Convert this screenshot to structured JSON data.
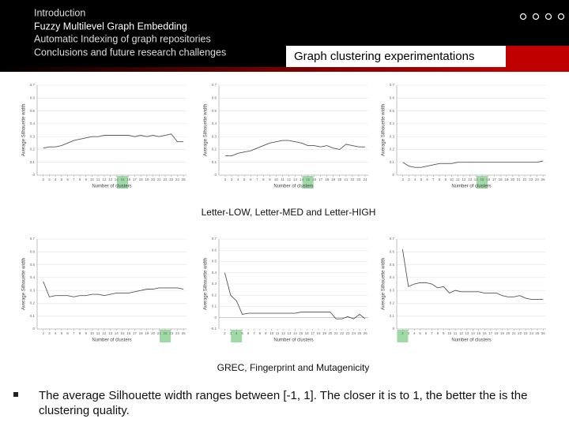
{
  "header": {
    "nav": [
      "Introduction",
      "Fuzzy Multilevel Graph Embedding",
      "Automatic Indexing of graph repositories",
      "Conclusions and future research challenges"
    ],
    "section_title": "Graph clustering experimentations"
  },
  "charts": [
    {
      "type": "line",
      "y_label": "Average Silhouette width",
      "x_label": "Number of clusters",
      "color": "#555555",
      "highlight_color": "#9ed9a6",
      "x": [
        2,
        3,
        4,
        5,
        6,
        7,
        8,
        9,
        10,
        11,
        12,
        13,
        14,
        15,
        16,
        17,
        18,
        19,
        20,
        21,
        22,
        23,
        24,
        25
      ],
      "values": [
        0.21,
        0.22,
        0.22,
        0.23,
        0.25,
        0.27,
        0.28,
        0.29,
        0.3,
        0.3,
        0.31,
        0.31,
        0.31,
        0.31,
        0.31,
        0.3,
        0.31,
        0.3,
        0.31,
        0.3,
        0.31,
        0.32,
        0.26,
        0.26
      ],
      "xlim": [
        1,
        25.5
      ],
      "xticks": [
        2,
        3,
        4,
        5,
        6,
        7,
        8,
        9,
        10,
        11,
        12,
        13,
        14,
        15,
        16,
        17,
        18,
        19,
        20,
        21,
        22,
        23,
        24,
        25
      ],
      "ylim": [
        0,
        0.7
      ],
      "yticks": [
        0,
        0.1,
        0.2,
        0.3,
        0.4,
        0.5,
        0.6,
        0.7
      ],
      "highlight_x": 15
    },
    {
      "type": "line",
      "y_label": "Average Silhouette width",
      "x_label": "Number of clusters",
      "color": "#555555",
      "highlight_color": "#9ed9a6",
      "x": [
        2,
        3,
        4,
        5,
        6,
        7,
        8,
        9,
        10,
        11,
        12,
        13,
        14,
        15,
        16,
        17,
        18,
        19,
        20,
        21,
        22,
        23,
        24
      ],
      "values": [
        0.15,
        0.15,
        0.17,
        0.18,
        0.19,
        0.21,
        0.23,
        0.25,
        0.26,
        0.27,
        0.27,
        0.26,
        0.25,
        0.23,
        0.23,
        0.22,
        0.23,
        0.21,
        0.2,
        0.24,
        0.23,
        0.22,
        0.22
      ],
      "xlim": [
        1,
        24.5
      ],
      "xticks": [
        2,
        3,
        4,
        5,
        6,
        7,
        8,
        9,
        10,
        11,
        12,
        13,
        14,
        15,
        16,
        17,
        18,
        19,
        20,
        21,
        22,
        23,
        24
      ],
      "ylim": [
        0,
        0.7
      ],
      "yticks": [
        0,
        0.1,
        0.2,
        0.3,
        0.4,
        0.5,
        0.6,
        0.7
      ],
      "highlight_x": 15
    },
    {
      "type": "line",
      "y_label": "Average Silhouette width",
      "x_label": "Number of clusters",
      "color": "#555555",
      "highlight_color": "#9ed9a6",
      "x": [
        2,
        3,
        4,
        5,
        6,
        7,
        8,
        9,
        10,
        11,
        12,
        13,
        14,
        15,
        16,
        17,
        18,
        19,
        20,
        21,
        22,
        23,
        24,
        25
      ],
      "values": [
        0.1,
        0.07,
        0.06,
        0.06,
        0.07,
        0.08,
        0.09,
        0.09,
        0.09,
        0.1,
        0.1,
        0.1,
        0.1,
        0.1,
        0.1,
        0.1,
        0.1,
        0.1,
        0.1,
        0.1,
        0.1,
        0.1,
        0.1,
        0.11
      ],
      "xlim": [
        1,
        25.5
      ],
      "xticks": [
        2,
        3,
        4,
        5,
        6,
        7,
        8,
        9,
        10,
        11,
        12,
        13,
        14,
        15,
        16,
        17,
        18,
        19,
        20,
        21,
        22,
        23,
        24,
        25
      ],
      "ylim": [
        0,
        0.7
      ],
      "yticks": [
        0,
        0.1,
        0.2,
        0.3,
        0.4,
        0.5,
        0.6,
        0.7
      ],
      "highlight_x": 15
    },
    {
      "type": "line",
      "y_label": "Average Silhouette width",
      "x_label": "Number of clusters",
      "color": "#555555",
      "highlight_color": "#9ed9a6",
      "x": [
        2,
        3,
        4,
        5,
        6,
        7,
        8,
        9,
        10,
        11,
        12,
        13,
        14,
        15,
        16,
        17,
        18,
        19,
        20,
        21,
        22,
        23,
        24,
        25
      ],
      "values": [
        0.37,
        0.25,
        0.26,
        0.26,
        0.26,
        0.25,
        0.26,
        0.26,
        0.27,
        0.27,
        0.26,
        0.27,
        0.28,
        0.28,
        0.28,
        0.29,
        0.3,
        0.31,
        0.31,
        0.32,
        0.32,
        0.32,
        0.32,
        0.31
      ],
      "xlim": [
        1,
        25.5
      ],
      "xticks": [
        2,
        3,
        4,
        5,
        6,
        7,
        8,
        9,
        10,
        11,
        12,
        13,
        14,
        15,
        16,
        17,
        18,
        19,
        20,
        21,
        22,
        23,
        24,
        25
      ],
      "ylim": [
        0,
        0.7
      ],
      "yticks": [
        0,
        0.1,
        0.2,
        0.3,
        0.4,
        0.5,
        0.6,
        0.7
      ],
      "highlight_x": 22
    },
    {
      "type": "line",
      "y_label": "Average Silhouette width",
      "x_label": "Number of clusters",
      "color": "#555555",
      "highlight_color": "#9ed9a6",
      "x": [
        2,
        3,
        4,
        5,
        6,
        7,
        8,
        9,
        10,
        11,
        12,
        13,
        14,
        15,
        16,
        17,
        18,
        19,
        20,
        21,
        22,
        23,
        24,
        25,
        26
      ],
      "values": [
        0.4,
        0.2,
        0.15,
        0.03,
        0.04,
        0.04,
        0.04,
        0.04,
        0.04,
        0.04,
        0.04,
        0.04,
        0.04,
        0.05,
        0.05,
        0.05,
        0.05,
        0.05,
        0.05,
        -0.01,
        -0.01,
        0.01,
        -0.01,
        0.03,
        -0.01
      ],
      "xlim": [
        1,
        26.5
      ],
      "xticks": [
        2,
        3,
        4,
        5,
        6,
        7,
        8,
        9,
        10,
        11,
        12,
        13,
        14,
        15,
        16,
        17,
        18,
        19,
        20,
        21,
        22,
        23,
        24,
        25,
        26
      ],
      "ylim": [
        -0.1,
        0.7
      ],
      "yticks": [
        -0.1,
        0,
        0.1,
        0.2,
        0.3,
        0.4,
        0.5,
        0.6,
        0.7
      ],
      "highlight_x": 4
    },
    {
      "type": "line",
      "y_label": "Average Silhouette width",
      "x_label": "Number of clusters",
      "color": "#555555",
      "highlight_color": "#9ed9a6",
      "x": [
        2,
        3,
        4,
        5,
        6,
        7,
        8,
        9,
        10,
        11,
        12,
        13,
        14,
        15,
        16,
        17,
        18,
        19,
        20,
        21,
        22,
        23,
        24,
        25,
        26
      ],
      "values": [
        0.62,
        0.33,
        0.35,
        0.36,
        0.36,
        0.35,
        0.32,
        0.33,
        0.28,
        0.3,
        0.29,
        0.29,
        0.29,
        0.29,
        0.28,
        0.28,
        0.28,
        0.26,
        0.25,
        0.25,
        0.26,
        0.24,
        0.23,
        0.23,
        0.23
      ],
      "xlim": [
        1,
        26.5
      ],
      "xticks": [
        2,
        3,
        4,
        5,
        6,
        7,
        8,
        9,
        10,
        11,
        12,
        13,
        14,
        15,
        16,
        17,
        18,
        19,
        20,
        21,
        22,
        23,
        24,
        25,
        26
      ],
      "ylim": [
        0,
        0.7
      ],
      "yticks": [
        0,
        0.1,
        0.2,
        0.3,
        0.4,
        0.5,
        0.6,
        0.7
      ],
      "highlight_x": 2
    }
  ],
  "captions": [
    "Letter-LOW, Letter-MED and Letter-HIGH",
    "GREC, Fingerprint and Mutagenicity"
  ],
  "bullet": "The average Silhouette width ranges between [-1, 1]. The closer it is to 1, the better the is the clustering quality."
}
